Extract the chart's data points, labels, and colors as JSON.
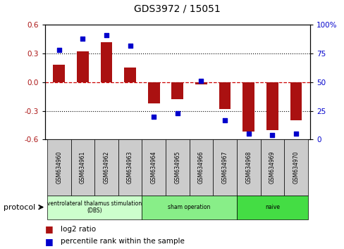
{
  "title": "GDS3972 / 15051",
  "samples": [
    "GSM634960",
    "GSM634961",
    "GSM634962",
    "GSM634963",
    "GSM634964",
    "GSM634965",
    "GSM634966",
    "GSM634967",
    "GSM634968",
    "GSM634969",
    "GSM634970"
  ],
  "log2_ratio": [
    0.18,
    0.32,
    0.42,
    0.15,
    -0.22,
    -0.18,
    -0.02,
    -0.28,
    -0.52,
    -0.5,
    -0.4
  ],
  "percentile_rank": [
    78,
    88,
    91,
    82,
    20,
    23,
    51,
    17,
    5,
    4,
    5
  ],
  "groups": [
    {
      "label": "ventrolateral thalamus stimulation\n(DBS)",
      "start": 0,
      "end": 3,
      "color": "#ccffcc"
    },
    {
      "label": "sham operation",
      "start": 4,
      "end": 7,
      "color": "#88ee88"
    },
    {
      "label": "naive",
      "start": 8,
      "end": 10,
      "color": "#44dd44"
    }
  ],
  "bar_color": "#aa1111",
  "dot_color": "#0000cc",
  "ylim_left": [
    -0.6,
    0.6
  ],
  "ylim_right": [
    0,
    100
  ],
  "yticks_left": [
    -0.6,
    -0.3,
    0.0,
    0.3,
    0.6
  ],
  "yticks_right": [
    0,
    25,
    50,
    75,
    100
  ],
  "ytick_labels_right": [
    "0",
    "25",
    "50",
    "75",
    "100%"
  ],
  "hline_color": "#cc0000",
  "dotted_color": "black",
  "bg_color": "white",
  "plot_bg": "white",
  "bar_width": 0.5,
  "sample_box_color": "#cccccc",
  "legend_bar_label": "log2 ratio",
  "legend_dot_label": "percentile rank within the sample",
  "protocol_label": "protocol"
}
